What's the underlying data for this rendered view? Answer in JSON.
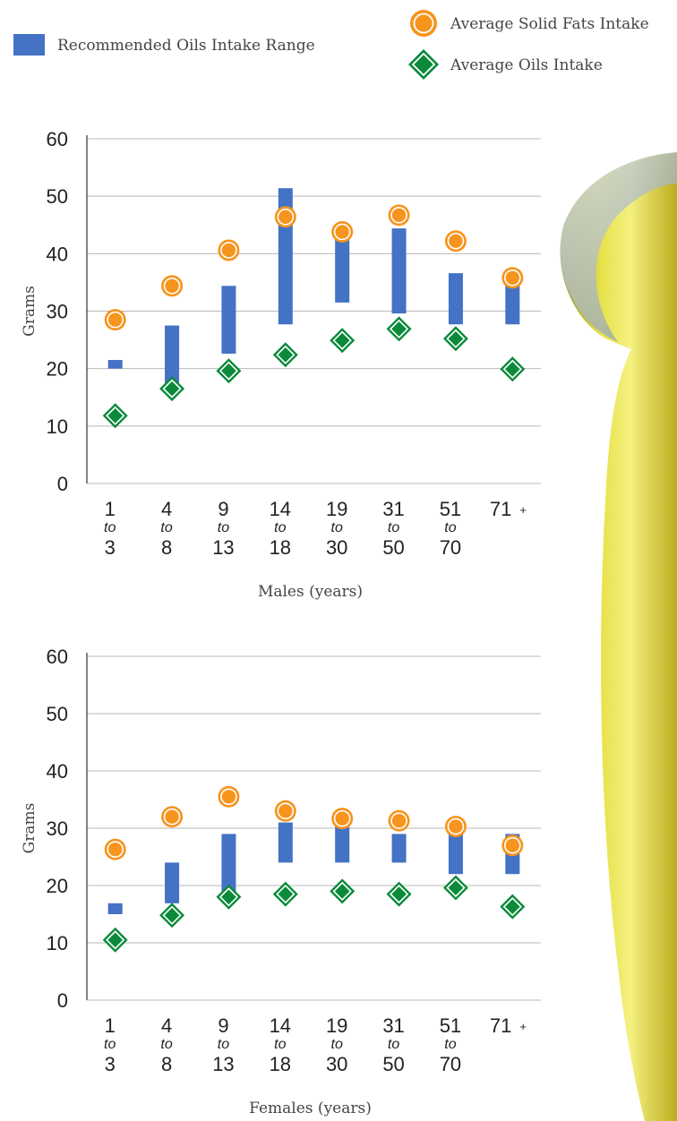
{
  "chart_data": [
    {
      "type": "range-dot",
      "categories": [
        [
          "1",
          "to",
          "3"
        ],
        [
          "4",
          "to",
          "8"
        ],
        [
          "9",
          "to",
          "13"
        ],
        [
          "14",
          "to",
          "18"
        ],
        [
          "19",
          "to",
          "30"
        ],
        [
          "31",
          "to",
          "50"
        ],
        [
          "51",
          "to",
          "70"
        ],
        [
          "71",
          "+"
        ]
      ],
      "x_label": "Males (years)",
      "y_label": "Grams",
      "ylim": [
        0,
        60
      ],
      "yticks": [
        0,
        10,
        20,
        30,
        40,
        50,
        60
      ],
      "grid": true,
      "series": [
        {
          "name": "Recommended Oils Intake Range",
          "marker": "bar",
          "color": "#4472c4",
          "low": [
            20,
            17,
            22.6,
            27.7,
            31.5,
            29.6,
            27.7,
            27.7
          ],
          "high": [
            21.5,
            27.5,
            34.4,
            51.4,
            43,
            44.4,
            36.6,
            35.8
          ]
        },
        {
          "name": "Average Solid Fats Intake",
          "marker": "circle",
          "color": "#f7941d",
          "values": [
            28.5,
            34.4,
            40.6,
            46.4,
            43.8,
            46.7,
            42.2,
            35.8
          ]
        },
        {
          "name": "Average Oils Intake",
          "marker": "diamond",
          "color": "#0a8a3a",
          "values": [
            11.8,
            16.5,
            19.6,
            22.4,
            24.9,
            26.9,
            25.2,
            19.9
          ]
        }
      ]
    },
    {
      "type": "range-dot",
      "categories": [
        [
          "1",
          "to",
          "3"
        ],
        [
          "4",
          "to",
          "8"
        ],
        [
          "9",
          "to",
          "13"
        ],
        [
          "14",
          "to",
          "18"
        ],
        [
          "19",
          "to",
          "30"
        ],
        [
          "31",
          "to",
          "50"
        ],
        [
          "51",
          "to",
          "70"
        ],
        [
          "71",
          "+"
        ]
      ],
      "x_label": "Females (years)",
      "y_label": "Grams",
      "ylim": [
        0,
        60
      ],
      "yticks": [
        0,
        10,
        20,
        30,
        40,
        50,
        60
      ],
      "grid": true,
      "series": [
        {
          "marker": "bar",
          "color": "#4472c4",
          "low": [
            15,
            16.9,
            18,
            24,
            24,
            24,
            22,
            22
          ],
          "high": [
            16.9,
            24,
            29,
            31,
            32,
            29,
            30,
            29
          ]
        },
        {
          "marker": "circle",
          "color": "#f7941d",
          "values": [
            26.3,
            32,
            35.5,
            33,
            31.7,
            31.3,
            30.3,
            27
          ]
        },
        {
          "marker": "diamond",
          "color": "#0a8a3a",
          "values": [
            10.5,
            14.8,
            18,
            18.5,
            19,
            18.5,
            19.6,
            16.3
          ]
        }
      ]
    }
  ]
}
